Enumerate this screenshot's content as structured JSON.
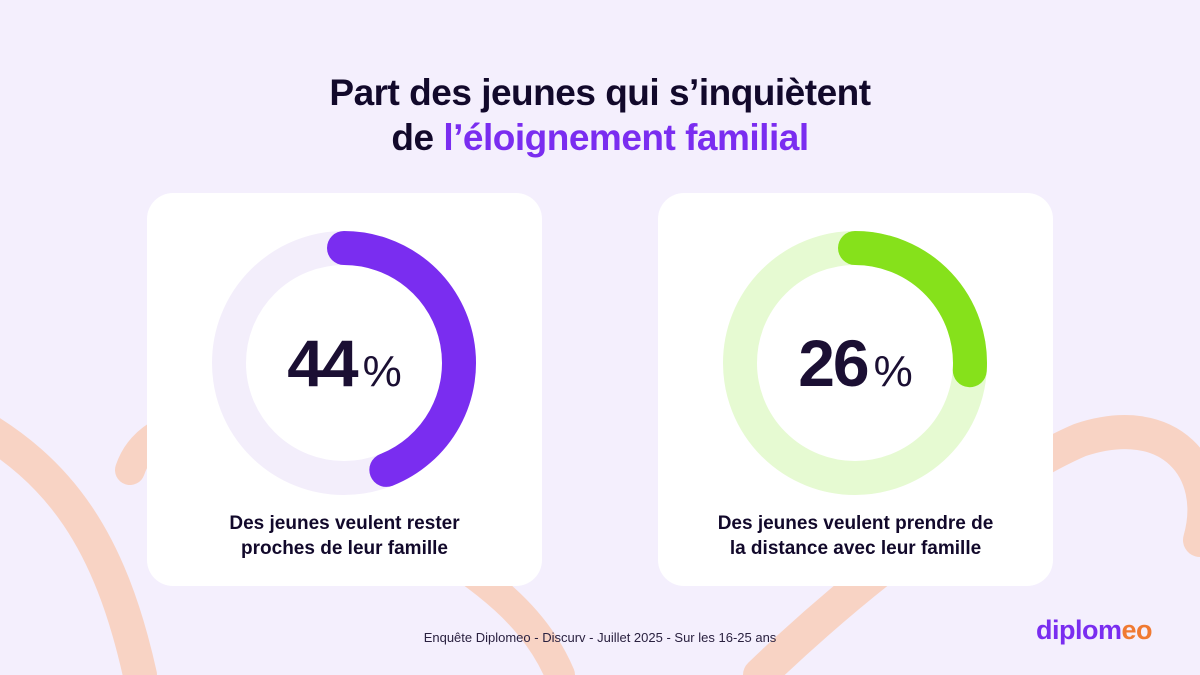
{
  "title": {
    "line1": "Part des jeunes qui s’inquiètent",
    "line2_prefix": "de ",
    "line2_highlight": "l’éloignement familial"
  },
  "colors": {
    "background": "#f4effd",
    "purple": "#7a2df0",
    "purple_track": "#f3eefb",
    "green": "#86e11b",
    "green_track": "#e6fad2",
    "decor": "#f8d3c4",
    "text": "#1b0f33"
  },
  "cards": [
    {
      "value": "44",
      "symbol": "%",
      "label_line1": "Des jeunes veulent rester",
      "label_line2": "proches de leur famille"
    },
    {
      "value": "26",
      "symbol": "%",
      "label_line1": "Des jeunes veulent prendre de",
      "label_line2": "la distance avec leur famille"
    }
  ],
  "chart_data": [
    {
      "type": "pie",
      "variant": "donut",
      "values": [
        44
      ],
      "unit": "%",
      "max": 100,
      "caption": "Des jeunes veulent rester proches de leur famille",
      "color": "#7a2df0"
    },
    {
      "type": "pie",
      "variant": "donut",
      "values": [
        26
      ],
      "unit": "%",
      "max": 100,
      "caption": "Des jeunes veulent prendre de la distance avec leur famille",
      "color": "#86e11b"
    }
  ],
  "footer": {
    "source": "Enquête Diplomeo - Discurv - Juillet 2025 - Sur les 16-25 ans"
  },
  "logo": {
    "part1": "diplom",
    "part2": "eo"
  }
}
